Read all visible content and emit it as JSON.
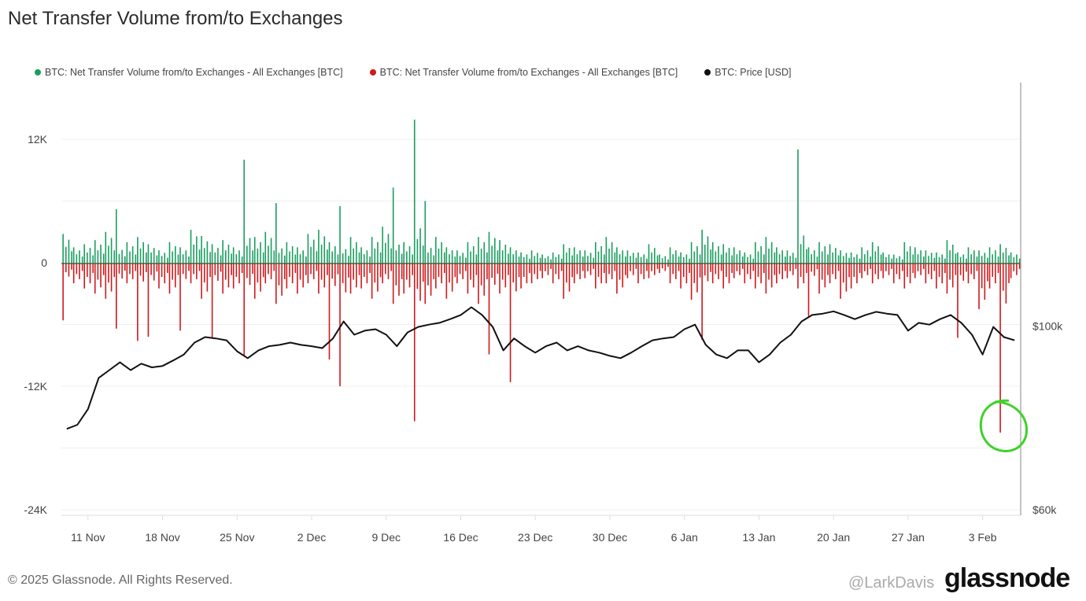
{
  "title": "Net Transfer Volume from/to Exchanges",
  "footer": "© 2025 Glassnode. All Rights Reserved.",
  "logo": "glassnode",
  "watermark": "@LarkDavis",
  "colors": {
    "positive": "#1a9e5f",
    "negative": "#d0191b",
    "price": "#111111",
    "annotation": "#3fd22a"
  },
  "chart_data": {
    "type": "bar+line",
    "title": "Net Transfer Volume from/to Exchanges",
    "legend": [
      {
        "name": "BTC: Net Transfer Volume from/to Exchanges - All Exchanges [BTC]",
        "color": "#1a9e5f"
      },
      {
        "name": "BTC: Net Transfer Volume from/to Exchanges - All Exchanges [BTC]",
        "color": "#d0191b"
      },
      {
        "name": "BTC: Price [USD]",
        "color": "#111111"
      }
    ],
    "legend_placement": "top-left",
    "x_start": "2024-11-09",
    "x_ticks": [
      "11 Nov",
      "18 Nov",
      "25 Nov",
      "2 Dec",
      "9 Dec",
      "16 Dec",
      "23 Dec",
      "30 Dec",
      "6 Jan",
      "13 Jan",
      "20 Jan",
      "27 Jan",
      "3 Feb"
    ],
    "x_tick_dates": [
      "2024-11-11",
      "2024-11-18",
      "2024-11-25",
      "2024-12-02",
      "2024-12-09",
      "2024-12-16",
      "2024-12-23",
      "2024-12-30",
      "2025-01-06",
      "2025-01-13",
      "2025-01-20",
      "2025-01-27",
      "2025-02-03"
    ],
    "y_ticks": [
      {
        "value": 12,
        "label": "12K"
      },
      {
        "value": 0,
        "label": "0"
      },
      {
        "value": -12,
        "label": "-12K"
      },
      {
        "value": -24,
        "label": "-24K"
      }
    ],
    "y_unit": "thousand BTC",
    "ylim": [
      -24,
      17.5
    ],
    "y2_ticks": [
      {
        "value": 100,
        "label": "$100k"
      },
      {
        "value": 60,
        "label": "$60k"
      }
    ],
    "y2_unit": "thousand USD",
    "y2lim": [
      60,
      153
    ],
    "grid": true,
    "series": [
      {
        "name": "BTC: Net Transfer Volume from/to Exchanges - All Exchanges [BTC]",
        "kind": "bar",
        "color": "#1a9e5f",
        "values": [
          2.8,
          1.5,
          1.8,
          2.2,
          3.0,
          5.2,
          2.0,
          2.5,
          1.8,
          1.2,
          2.0,
          1.5,
          3.2,
          2.6,
          1.8,
          2.2,
          1.5,
          10.0,
          2.5,
          3.0,
          5.8,
          2.0,
          1.5,
          2.8,
          3.2,
          2.0,
          5.5,
          2.5,
          1.5,
          2.5,
          3.5,
          7.3,
          2.0,
          13.9,
          6.0,
          2.5,
          1.5,
          1.2,
          2.0,
          2.5,
          3.0,
          2.2,
          1.5,
          1.0,
          1.2,
          0.8,
          1.0,
          1.8,
          1.5,
          1.2,
          2.0,
          2.5,
          1.5,
          1.2,
          1.0,
          1.8,
          0.8,
          1.5,
          1.0,
          2.0,
          3.2,
          2.0,
          1.8,
          1.5,
          1.0,
          2.0,
          2.5,
          1.5,
          1.2,
          11.0,
          1.5,
          2.0,
          1.8,
          1.2,
          1.0,
          1.5,
          2.0,
          1.0,
          0.8,
          2.0,
          1.5,
          1.2,
          1.0,
          2.2,
          1.0,
          1.5,
          1.2,
          1.5,
          1.8,
          1.0
        ]
      },
      {
        "name": "BTC: Net Transfer Volume from/to Exchanges - All Exchanges [BTC]",
        "kind": "bar",
        "color": "#d0191b",
        "values": [
          -5.6,
          -2.0,
          -2.5,
          -3.0,
          -3.5,
          -6.4,
          -2.0,
          -7.6,
          -7.2,
          -2.5,
          -3.0,
          -6.6,
          -2.0,
          -3.5,
          -7.3,
          -3.0,
          -2.5,
          -9.0,
          -3.5,
          -2.0,
          -4.0,
          -2.5,
          -3.0,
          -2.0,
          -3.0,
          -9.4,
          -12.0,
          -3.0,
          -2.5,
          -3.5,
          -2.0,
          -4.0,
          -3.0,
          -15.4,
          -4.0,
          -2.5,
          -3.5,
          -2.0,
          -3.0,
          -4.0,
          -8.9,
          -3.0,
          -11.6,
          -2.5,
          -2.0,
          -1.5,
          -2.0,
          -3.5,
          -2.0,
          -1.5,
          -2.5,
          -2.0,
          -3.0,
          -1.5,
          -2.0,
          -1.5,
          -1.0,
          -2.0,
          -2.5,
          -3.6,
          -7.5,
          -2.0,
          -2.5,
          -1.5,
          -2.0,
          -2.5,
          -3.0,
          -2.0,
          -1.5,
          -2.5,
          -5.3,
          -3.0,
          -2.0,
          -3.5,
          -2.5,
          -1.5,
          -2.0,
          -1.5,
          -2.0,
          -2.5,
          -1.5,
          -2.0,
          -2.5,
          -3.0,
          -7.3,
          -2.0,
          -4.5,
          -2.5,
          -16.5,
          -1.5
        ]
      },
      {
        "name": "BTC: Price [USD]",
        "kind": "line",
        "axis": "right",
        "color": "#111111",
        "values": [
          77.6,
          78.5,
          81.9,
          88.7,
          90.4,
          92.1,
          90.4,
          91.8,
          91.0,
          91.3,
          92.5,
          93.8,
          96.4,
          97.6,
          97.3,
          96.9,
          94.5,
          93.0,
          94.7,
          95.6,
          95.9,
          96.4,
          95.9,
          95.6,
          95.2,
          97.3,
          101.0,
          98.1,
          99.0,
          99.3,
          98.1,
          95.6,
          98.6,
          99.8,
          100.3,
          100.7,
          101.5,
          102.4,
          104.1,
          102.4,
          99.8,
          94.7,
          97.3,
          95.6,
          94.2,
          95.6,
          96.4,
          94.7,
          95.6,
          94.7,
          94.2,
          93.5,
          93.0,
          94.2,
          95.6,
          96.9,
          97.3,
          97.6,
          99.3,
          100.3,
          95.9,
          93.8,
          93.0,
          94.7,
          94.7,
          92.1,
          93.8,
          96.4,
          98.1,
          101.0,
          102.4,
          102.7,
          103.2,
          102.4,
          101.5,
          102.4,
          103.1,
          102.7,
          102.4,
          99.0,
          100.7,
          100.3,
          101.5,
          102.4,
          100.7,
          98.1,
          93.8,
          99.8,
          97.6,
          96.9
        ]
      }
    ],
    "annotation": {
      "type": "hand-drawn circle",
      "color": "#3fd22a",
      "target_date": "2025-02-05"
    }
  }
}
